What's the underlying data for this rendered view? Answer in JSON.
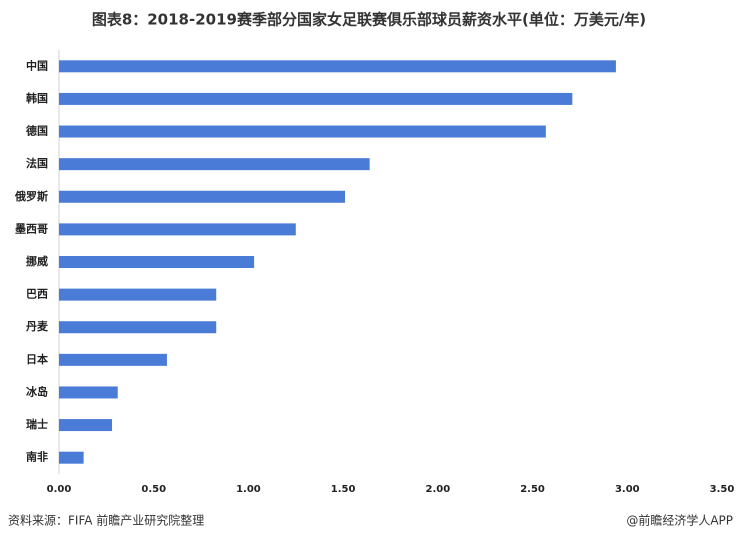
{
  "chart_data": {
    "type": "bar",
    "orientation": "horizontal",
    "title": "图表8：2018-2019赛季部分国家女足联赛俱乐部球员薪资水平(单位：万美元/年)",
    "categories": [
      "中国",
      "韩国",
      "德国",
      "法国",
      "俄罗斯",
      "墨西哥",
      "挪威",
      "巴西",
      "丹麦",
      "日本",
      "冰岛",
      "瑞士",
      "南非"
    ],
    "values": [
      2.94,
      2.71,
      2.57,
      1.64,
      1.51,
      1.25,
      1.03,
      0.83,
      0.83,
      0.57,
      0.31,
      0.28,
      0.13
    ],
    "color": "#4a7bd6",
    "xlim": [
      0,
      3.5
    ],
    "xticks": [
      {
        "value": 0,
        "label": "0.00"
      },
      {
        "value": 0.5,
        "label": "0.50"
      },
      {
        "value": 1,
        "label": "1.00"
      },
      {
        "value": 1.5,
        "label": "1.50"
      },
      {
        "value": 2,
        "label": "2.00"
      },
      {
        "value": 2.5,
        "label": "2.50"
      },
      {
        "value": 3,
        "label": "3.00"
      },
      {
        "value": 3.5,
        "label": "3.50"
      }
    ],
    "grid": false,
    "source": "资料来源：FIFA 前瞻产业研究院整理",
    "credit": "@前瞻经济学人APP"
  }
}
